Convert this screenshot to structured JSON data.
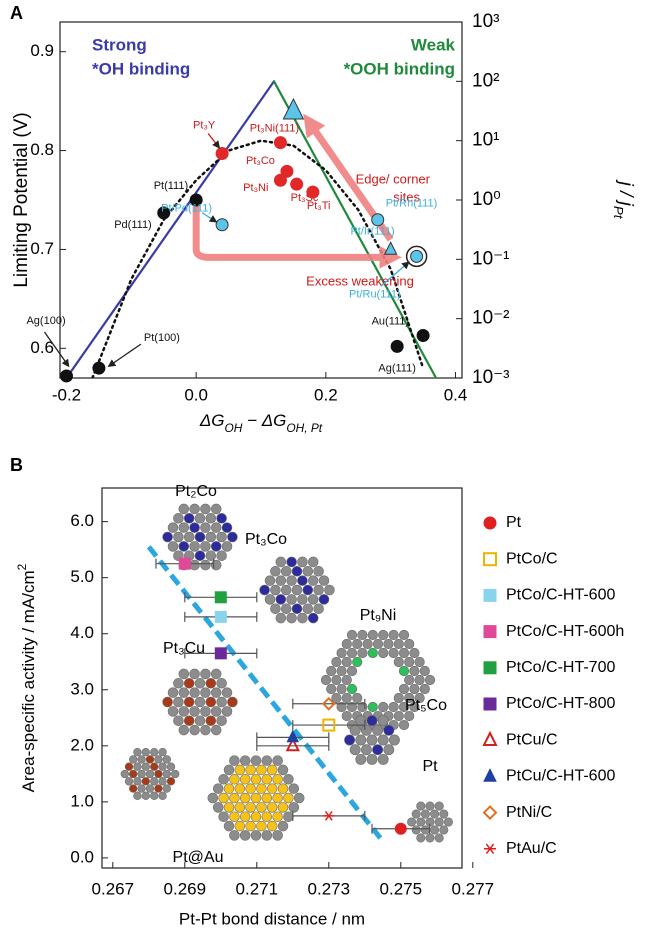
{
  "chart_data": [
    {
      "type": "scatter",
      "panel_label": "A",
      "ylabel": "Limiting Potential (V)",
      "xlabel": [
        "ΔG",
        "OH",
        " − ΔG",
        "OH, Pt"
      ],
      "y2label": [
        "j / j",
        "Pt"
      ],
      "xlim": [
        -0.21,
        0.41
      ],
      "xticks": [
        -0.2,
        {
          "value": 0,
          "label": "0.0"
        },
        0.2,
        0.4
      ],
      "ylim": [
        0.57,
        0.93
      ],
      "yticks": [
        0.6,
        0.7,
        0.8,
        0.9
      ],
      "y2lim": [
        0.001,
        1000
      ],
      "y2log": true,
      "y2ticks": [
        {
          "value": 0.001,
          "label": "10⁻³"
        },
        {
          "value": 0.01,
          "label": "10⁻²"
        },
        {
          "value": 0.1,
          "label": "10⁻¹"
        },
        {
          "value": 1,
          "label": "10⁰"
        },
        {
          "value": 10,
          "label": "10¹"
        },
        {
          "value": 100,
          "label": "10²"
        },
        {
          "value": 1000,
          "label": "10³"
        }
      ],
      "lines": [
        {
          "color": "#3a3aa8",
          "dash": false,
          "x": [
            -0.2,
            0.12
          ],
          "values": [
            0.57,
            0.87
          ]
        },
        {
          "color": "#1f8a3c",
          "dash": false,
          "x": [
            0.12,
            0.37
          ],
          "values": [
            0.87,
            0.57
          ]
        },
        {
          "color": "#111111",
          "dash": true,
          "x": [
            -0.16,
            -0.1,
            -0.05,
            0,
            0.05,
            0.1,
            0.15,
            0.2,
            0.25,
            0.3,
            0.35
          ],
          "values": [
            0.57,
            0.67,
            0.73,
            0.77,
            0.8,
            0.81,
            0.805,
            0.78,
            0.74,
            0.68,
            0.58
          ]
        }
      ],
      "series": [
        {
          "color": "#111111",
          "marker": "circle",
          "label_color": "#111111",
          "x": [
            -0.2,
            -0.15,
            -0.05,
            0,
            0.35,
            0.31
          ],
          "values": [
            0.572,
            0.58,
            0.737,
            0.75,
            0.613,
            0.602
          ],
          "point_labels": [
            "Ag(100)",
            "Pt(100)",
            "Pd(111)",
            "Pt(111)",
            "Au(111)",
            "Ag(111)"
          ]
        },
        {
          "color": "#e02828",
          "marker": "circle",
          "label_color": "#d01818",
          "x": [
            0.04,
            0.13,
            0.14,
            0.13,
            0.155,
            0.18
          ],
          "values": [
            0.797,
            0.808,
            0.779,
            0.77,
            0.766,
            0.758
          ],
          "point_labels": [
            "Pt₃Y",
            "Pt₃Ni(111)",
            "Pt₃Co",
            "Pt₃Ni",
            "Pt₃Sc",
            "Pt₃Ti"
          ]
        },
        {
          "color": "#5cc4ea",
          "marker": "circle",
          "label_color": "#3cb0e0",
          "x": [
            0.04,
            0.28,
            0.34
          ],
          "values": [
            0.725,
            0.73,
            0.693
          ],
          "point_labels": [
            "Pt/Pd(111)",
            "Pt/Rh(111)",
            "Pt/Ru(111)"
          ]
        },
        {
          "color": "#5cc4ea",
          "marker": "triangle",
          "label_color": "#3cb0e0",
          "x": [
            0.3,
            0.15
          ],
          "values": [
            0.7,
            0.84
          ],
          "point_labels": [
            "Pt/Ir(111)",
            null
          ]
        }
      ],
      "annotations": [
        {
          "text": "Strong",
          "color": "#3a3aa8"
        },
        {
          "text": "*OH binding",
          "color": "#3a3aa8"
        },
        {
          "text": "Weak",
          "color": "#1f8a3c"
        },
        {
          "text": "*OOH binding",
          "color": "#1f8a3c"
        },
        {
          "text": "Edge/ corner",
          "color": "#d01818"
        },
        {
          "text": "sites",
          "color": "#d01818"
        },
        {
          "text": "Excess weakening",
          "color": "#d01818"
        }
      ]
    },
    {
      "type": "errorscatter",
      "panel_label": "B",
      "ylabel": [
        "Area-specific activity / mA/cm",
        "2"
      ],
      "xlabel": "Pt-Pt bond distance / nm",
      "xlim": [
        0.2667,
        0.2767
      ],
      "xticks": [
        0.267,
        0.269,
        0.271,
        0.273,
        0.275,
        0.277
      ],
      "ylim": [
        -0.18,
        6.6
      ],
      "yticks": [
        {
          "value": 0,
          "label": "0.0"
        },
        {
          "value": 1,
          "label": "1.0"
        },
        {
          "value": 2,
          "label": "2.0"
        },
        {
          "value": 3,
          "label": "3.0"
        },
        {
          "value": 4,
          "label": "4.0"
        },
        {
          "value": 5,
          "label": "5.0"
        },
        {
          "value": 6,
          "label": "6.0"
        }
      ],
      "fit_line": {
        "color": "#2aa6e0",
        "x": [
          0.268,
          0.2745
        ],
        "values": [
          5.55,
          0.3
        ]
      },
      "series": [
        {
          "name": "Pt",
          "color": "#e02020",
          "marker": "circle",
          "filled": true,
          "x": [
            0.275
          ],
          "values": [
            0.52
          ],
          "xerr": [
            0.0008
          ]
        },
        {
          "name": "PtCo/C",
          "color": "#f0b400",
          "marker": "square",
          "filled": false,
          "x": [
            0.273
          ],
          "values": [
            2.37
          ],
          "xerr": [
            0.001
          ]
        },
        {
          "name": "PtCo/C-HT-600",
          "color": "#88d4ec",
          "marker": "square",
          "filled": true,
          "x": [
            0.27
          ],
          "values": [
            4.3
          ],
          "xerr": [
            0.001
          ]
        },
        {
          "name": "PtCo/C-HT-600h",
          "color": "#e04898",
          "marker": "square",
          "filled": true,
          "x": [
            0.269
          ],
          "values": [
            5.25
          ],
          "xerr": [
            0.0008
          ]
        },
        {
          "name": "PtCo/C-HT-700",
          "color": "#20a040",
          "marker": "square",
          "filled": true,
          "x": [
            0.27
          ],
          "values": [
            4.65
          ],
          "xerr": [
            0.001
          ]
        },
        {
          "name": "PtCo/C-HT-800",
          "color": "#6a2a9a",
          "marker": "square",
          "filled": true,
          "x": [
            0.27
          ],
          "values": [
            3.65
          ],
          "xerr": [
            0.001
          ]
        },
        {
          "name": "PtCu/C",
          "color": "#d02020",
          "marker": "triangle",
          "filled": false,
          "x": [
            0.272
          ],
          "values": [
            2.0
          ],
          "xerr": [
            0.001
          ]
        },
        {
          "name": "PtCu/C-HT-600",
          "color": "#2040a0",
          "marker": "triangle",
          "filled": true,
          "x": [
            0.272
          ],
          "values": [
            2.15
          ],
          "xerr": [
            0.001
          ]
        },
        {
          "name": "PtNi/C",
          "color": "#e07020",
          "marker": "diamond",
          "filled": false,
          "x": [
            0.273
          ],
          "values": [
            2.75
          ],
          "xerr": [
            0.001
          ]
        },
        {
          "name": "PtAu/C",
          "color": "#e02020",
          "marker": "star",
          "filled": false,
          "x": [
            0.273
          ],
          "values": [
            0.75
          ],
          "xerr": [
            0.001
          ]
        }
      ],
      "cluster_labels": [
        "Pt₂Co",
        "Pt₃Co",
        "Pt₉Ni",
        "Pt₃Cu",
        "Pt₅Co",
        "Pt",
        "Pt@Au"
      ]
    }
  ]
}
